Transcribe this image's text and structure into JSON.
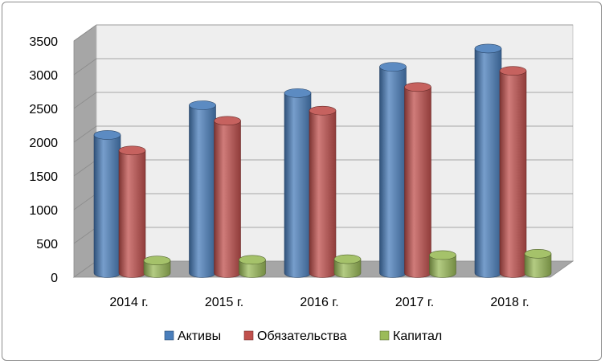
{
  "chart_data": {
    "type": "bar",
    "categories": [
      "2014 г.",
      "2015 г.",
      "2016 г.",
      "2017 г.",
      "2018 г."
    ],
    "series": [
      {
        "name": "Активы",
        "values": [
          2060,
          2500,
          2680,
          3070,
          3340
        ],
        "color": "#4a7ebb"
      },
      {
        "name": "Обязательства",
        "values": [
          1830,
          2270,
          2420,
          2770,
          3010
        ],
        "color": "#c0504d"
      },
      {
        "name": "Капитал",
        "values": [
          200,
          210,
          220,
          280,
          300
        ],
        "color": "#9bbb59"
      }
    ],
    "yticks": [
      "0",
      "500",
      "1000",
      "1500",
      "2000",
      "2500",
      "3000",
      "3500"
    ],
    "ylim": [
      0,
      3500
    ],
    "grid": true,
    "legend": "bottom",
    "style": "3d-cylinder"
  }
}
